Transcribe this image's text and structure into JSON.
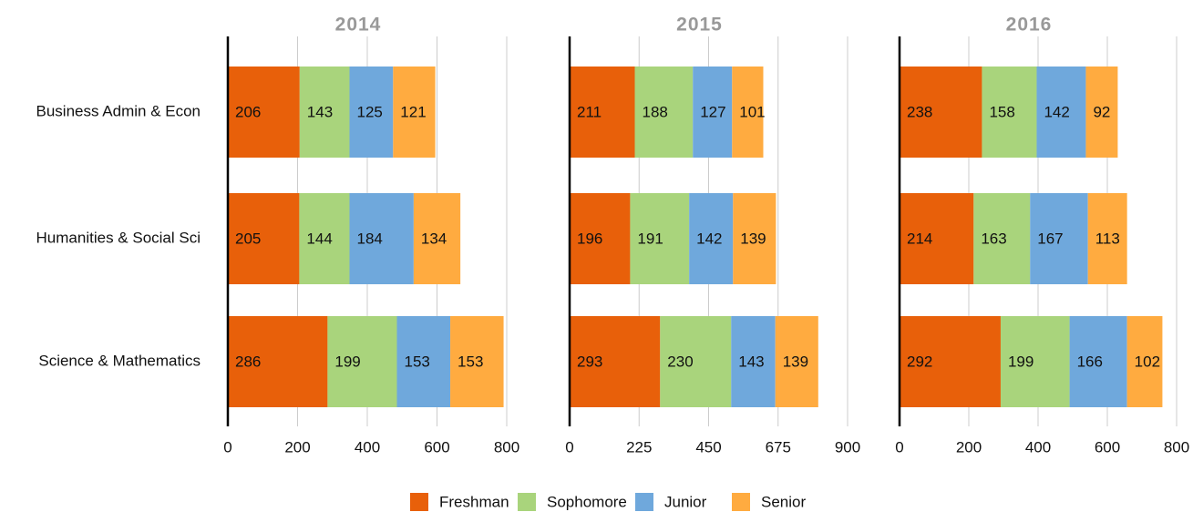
{
  "chart_data": [
    {
      "type": "bar",
      "orientation": "horizontal",
      "stacked": true,
      "title": "2014",
      "categories": [
        "Business Admin & Econ",
        "Humanities & Social Sci",
        "Science & Mathematics"
      ],
      "series": [
        {
          "name": "Freshman",
          "color": "#e8600a",
          "values": [
            206,
            205,
            286
          ]
        },
        {
          "name": "Sophomore",
          "color": "#a9d47c",
          "values": [
            143,
            144,
            199
          ]
        },
        {
          "name": "Junior",
          "color": "#6fa8dc",
          "values": [
            125,
            184,
            153
          ]
        },
        {
          "name": "Senior",
          "color": "#ffab40",
          "values": [
            121,
            134,
            153
          ]
        }
      ],
      "xlim": [
        0,
        800
      ],
      "xticks": [
        0,
        200,
        400,
        600,
        800
      ],
      "grid": true
    },
    {
      "type": "bar",
      "orientation": "horizontal",
      "stacked": true,
      "title": "2015",
      "series": [
        {
          "color": "#e8600a",
          "values": [
            211,
            196,
            293
          ]
        },
        {
          "color": "#a9d47c",
          "values": [
            188,
            191,
            230
          ]
        },
        {
          "color": "#6fa8dc",
          "values": [
            127,
            142,
            143
          ]
        },
        {
          "color": "#ffab40",
          "values": [
            101,
            139,
            139
          ]
        }
      ],
      "xlim": [
        0,
        900
      ],
      "xticks": [
        0,
        225,
        450,
        675,
        900
      ],
      "grid": true
    },
    {
      "type": "bar",
      "orientation": "horizontal",
      "stacked": true,
      "title": "2016",
      "series": [
        {
          "color": "#e8600a",
          "values": [
            238,
            214,
            292
          ]
        },
        {
          "color": "#a9d47c",
          "values": [
            158,
            163,
            199
          ]
        },
        {
          "color": "#6fa8dc",
          "values": [
            142,
            167,
            166
          ]
        },
        {
          "color": "#ffab40",
          "values": [
            92,
            113,
            102
          ]
        }
      ],
      "xlim": [
        0,
        800
      ],
      "xticks": [
        0,
        200,
        400,
        600,
        800
      ],
      "grid": true
    }
  ]
}
